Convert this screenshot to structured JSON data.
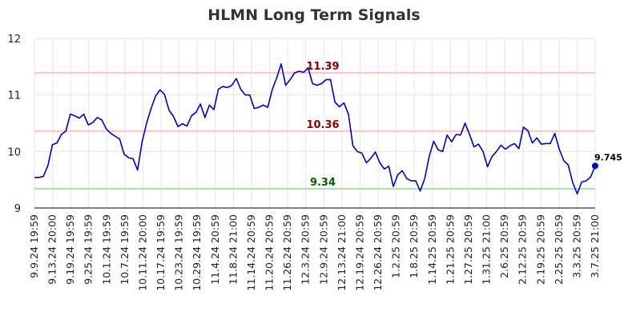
{
  "chart_data": {
    "type": "line",
    "title": "HLMN Long Term Signals",
    "xlabel": "",
    "ylabel": "",
    "ylim": [
      9,
      12
    ],
    "yticks": [
      "9",
      "10",
      "11",
      "12"
    ],
    "grid": true,
    "xticks": [
      "9.9.24 19:59",
      "9.13.24 20:00",
      "9.19.24 19:59",
      "9.25.24 19:59",
      "10.1.24 19:59",
      "10.7.24 19:59",
      "10.11.24 20:00",
      "10.17.24 19:59",
      "10.23.24 19:59",
      "10.29.24 19:59",
      "11.4.24 20:59",
      "11.8.24 21:00",
      "11.14.24 20:59",
      "11.20.24 20:59",
      "11.26.24 20:59",
      "12.3.24 20:59",
      "12.9.24 20:59",
      "12.13.24 21:00",
      "12.19.24 20:59",
      "12.26.24 20:59",
      "1.2.25 20:59",
      "1.8.25 20:59",
      "1.14.25 20:59",
      "1.21.25 20:59",
      "1.27.25 20:59",
      "1.31.25 21:00",
      "2.6.25 20:59",
      "2.12.25 20:59",
      "2.19.25 20:59",
      "2.25.25 20:59",
      "3.3.25 20:59",
      "3.7.25 21:00"
    ],
    "reference_lines": [
      {
        "value": 11.39,
        "label": "11.39",
        "line_color": "#ffc2c2",
        "label_color": "#8b0000"
      },
      {
        "value": 10.36,
        "label": "10.36",
        "line_color": "#ffc2c2",
        "label_color": "#8b0000"
      },
      {
        "value": 9.34,
        "label": "9.34",
        "line_color": "#a8e6a8",
        "label_color": "#006400"
      }
    ],
    "series": [
      {
        "color": "#0000cc",
        "values": [
          9.54,
          9.54,
          9.56,
          9.75,
          10.12,
          10.15,
          10.3,
          10.36,
          10.66,
          10.63,
          10.59,
          10.66,
          10.47,
          10.51,
          10.6,
          10.56,
          10.4,
          10.32,
          10.27,
          10.22,
          9.95,
          9.89,
          9.87,
          9.67,
          10.17,
          10.5,
          10.76,
          10.98,
          11.09,
          11.01,
          10.73,
          10.62,
          10.44,
          10.49,
          10.45,
          10.63,
          10.69,
          10.84,
          10.6,
          10.82,
          10.74,
          11.1,
          11.15,
          11.13,
          11.17,
          11.29,
          11.1,
          11.0,
          11.0,
          10.76,
          10.78,
          10.82,
          10.78,
          11.09,
          11.3,
          11.55,
          11.17,
          11.27,
          11.39,
          11.42,
          11.4,
          11.48,
          11.2,
          11.17,
          11.2,
          11.27,
          11.27,
          10.87,
          10.79,
          10.86,
          10.66,
          10.1,
          10.0,
          9.97,
          9.8,
          9.88,
          9.99,
          9.8,
          9.69,
          9.74,
          9.38,
          9.59,
          9.66,
          9.52,
          9.48,
          9.48,
          9.3,
          9.52,
          9.91,
          10.18,
          10.03,
          10.0,
          10.29,
          10.17,
          10.3,
          10.29,
          10.5,
          10.3,
          10.08,
          10.13,
          10.0,
          9.73,
          9.91,
          10.0,
          10.11,
          10.04,
          10.1,
          10.14,
          10.05,
          10.43,
          10.37,
          10.15,
          10.24,
          10.13,
          10.14,
          10.14,
          10.32,
          10.04,
          9.84,
          9.76,
          9.45,
          9.25,
          9.46,
          9.48,
          9.55,
          9.745
        ]
      }
    ],
    "last_value_label": "9.745"
  }
}
